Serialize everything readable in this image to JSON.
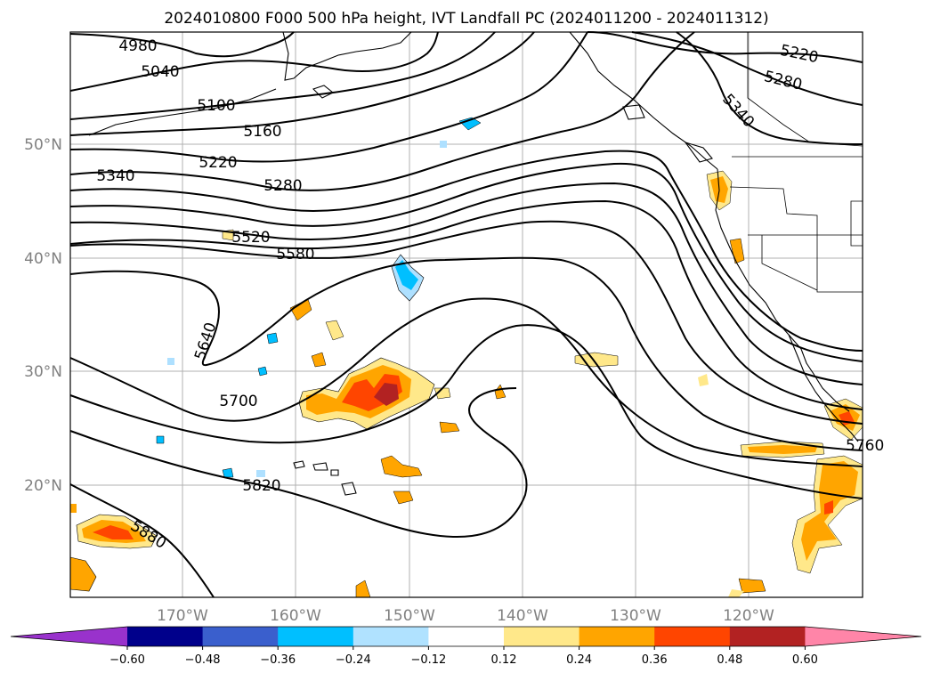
{
  "title": "2024010800 F000 500 hPa height, IVT Landfall PC (2024011200 - 2024011312)",
  "map": {
    "lat_labels": [
      "50°N",
      "40°N",
      "30°N",
      "20°N"
    ],
    "lon_labels": [
      "170°W",
      "160°W",
      "150°W",
      "140°W",
      "130°W",
      "120°W"
    ],
    "contour_labels": [
      "4980",
      "5040",
      "5100",
      "5160",
      "5220",
      "5280",
      "5340",
      "5520",
      "5580",
      "5640",
      "5700",
      "5820",
      "5880",
      "5220",
      "5280",
      "5340",
      "5760"
    ],
    "colors": {
      "pos_012": "#ffe88a",
      "pos_024": "#ffa500",
      "pos_036": "#ff4500",
      "pos_048": "#b22222",
      "neg_012": "#aee0ff",
      "neg_024": "#00bfff"
    }
  },
  "colorbar": {
    "ticks": [
      "−0.60",
      "−0.48",
      "−0.36",
      "−0.24",
      "−0.12",
      "0.12",
      "0.24",
      "0.36",
      "0.48",
      "0.60"
    ],
    "colors": [
      "#9932cc",
      "#00008b",
      "#3a5fcd",
      "#00bfff",
      "#b0e2ff",
      "#ffffff",
      "#ffe88a",
      "#ffa500",
      "#ff4500",
      "#b22222",
      "#ff85a8"
    ]
  }
}
